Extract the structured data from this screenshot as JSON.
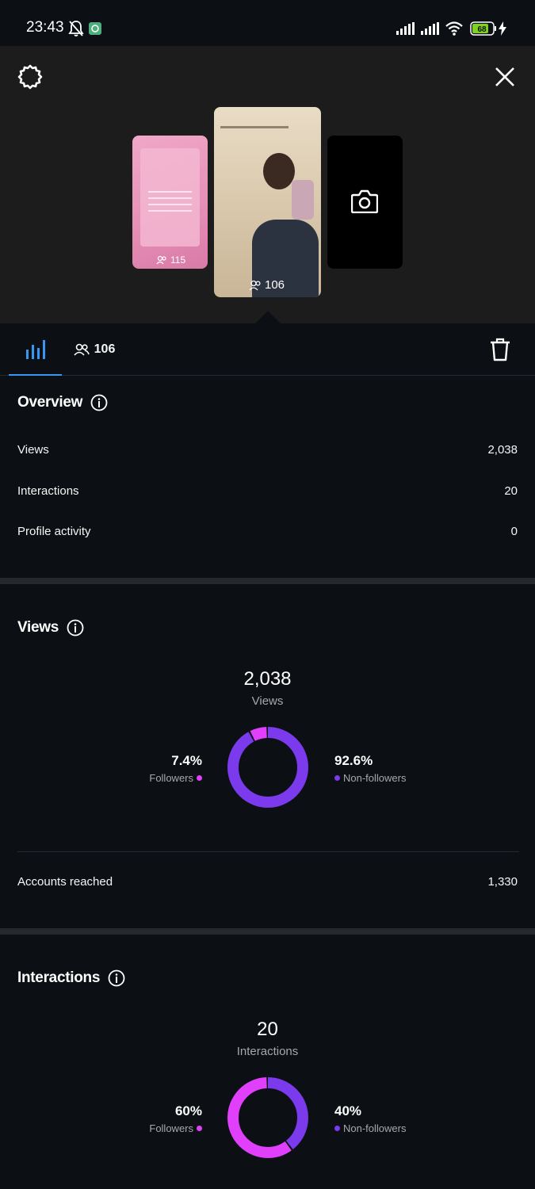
{
  "status_bar": {
    "time": "23:43",
    "battery": "68",
    "icons": [
      "bell-off-icon",
      "app-notification-icon",
      "signal-icon",
      "signal-icon",
      "wifi-icon",
      "battery-icon",
      "charging-icon"
    ]
  },
  "header": {
    "settings_icon": "gear-icon",
    "close_icon": "close-icon"
  },
  "stories": [
    {
      "count": "115",
      "thumbnail_color": "#e9a0c2"
    },
    {
      "count": "106",
      "thumbnail_color": "#d8cbb5",
      "selected": true
    },
    {
      "icon": "camera-icon",
      "thumbnail_color": "#000000"
    }
  ],
  "tabs": {
    "insights_icon": "bar-chart-icon",
    "viewers_count": "106",
    "delete_icon": "trash-icon"
  },
  "overview": {
    "title": "Overview",
    "rows": [
      {
        "label": "Views",
        "value": "2,038"
      },
      {
        "label": "Interactions",
        "value": "20"
      },
      {
        "label": "Profile activity",
        "value": "0"
      }
    ]
  },
  "views": {
    "title": "Views",
    "total": "2,038",
    "total_label": "Views",
    "followers_pct": "7.4%",
    "followers_label": "Followers",
    "nonfollowers_pct": "92.6%",
    "nonfollowers_label": "Non-followers",
    "followers_fraction": 0.074,
    "accounts_reached_label": "Accounts reached",
    "accounts_reached_value": "1,330"
  },
  "interactions": {
    "title": "Interactions",
    "total": "20",
    "total_label": "Interactions",
    "followers_pct": "60%",
    "followers_label": "Followers",
    "nonfollowers_pct": "40%",
    "nonfollowers_label": "Non-followers",
    "followers_fraction": 0.6
  },
  "colors": {
    "followers": "#e040fb",
    "nonfollowers": "#7c3aed",
    "accent": "#3897f0"
  }
}
